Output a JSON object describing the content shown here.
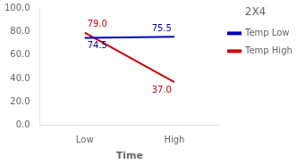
{
  "chart_data": {
    "type": "line",
    "title": "2X4",
    "xlabel": "Time",
    "categories": [
      "Low",
      "High"
    ],
    "series": [
      {
        "name": "Temp Low",
        "color": "#0000bb",
        "values": [
          74.5,
          75.5
        ],
        "value_labels": [
          "74.5",
          "75.5"
        ]
      },
      {
        "name": "Temp High",
        "color": "#cc0000",
        "values": [
          79.0,
          37.0
        ],
        "value_labels": [
          "79.0",
          "37.0"
        ]
      }
    ],
    "ylim": [
      0.0,
      100.0
    ],
    "yticks": [
      {
        "value": 0,
        "label": "0.0"
      },
      {
        "value": 20,
        "label": "20.0"
      },
      {
        "value": 40,
        "label": "40.0"
      },
      {
        "value": 60,
        "label": "60.0"
      },
      {
        "value": 80,
        "label": "80.0"
      },
      {
        "value": 100,
        "label": "100.0"
      }
    ],
    "grid": false,
    "legend": "right",
    "data_labels": true
  }
}
